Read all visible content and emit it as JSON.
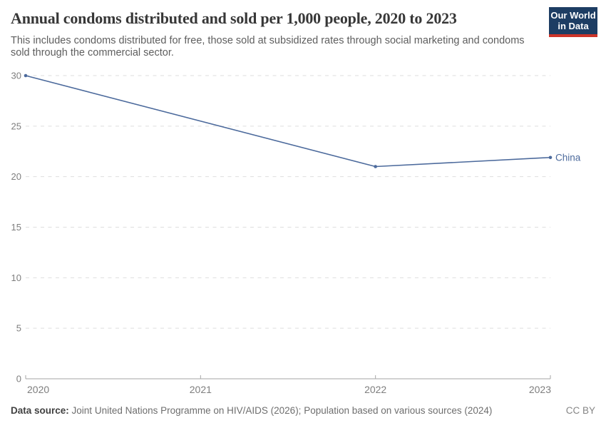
{
  "header": {
    "title": "Annual condoms distributed and sold per 1,000 people, 2020 to 2023",
    "subtitle": "This includes condoms distributed for free, those sold at subsidized rates through social marketing and condoms sold through the commercial sector."
  },
  "logo": {
    "line1": "Our World",
    "line2": "in Data"
  },
  "chart_data": {
    "type": "line",
    "title": "Annual condoms distributed and sold per 1,000 people, 2020 to 2023",
    "xlabel": "",
    "ylabel": "",
    "xlim": [
      2020,
      2023
    ],
    "ylim": [
      0,
      30
    ],
    "x_ticks": [
      2020,
      2021,
      2022,
      2023
    ],
    "y_ticks": [
      0,
      5,
      10,
      15,
      20,
      25,
      30
    ],
    "grid": "horizontal-dashed",
    "legend_position": "end-of-line-label",
    "series": [
      {
        "name": "China",
        "color": "#4C6A9C",
        "x": [
          2020,
          2022,
          2023
        ],
        "values": [
          30,
          21,
          21.9
        ]
      }
    ]
  },
  "footer": {
    "data_source_label": "Data source:",
    "data_source_text": "Joint United Nations Programme on HIV/AIDS (2026); Population based on various sources (2024)",
    "license": "CC BY"
  },
  "colors": {
    "line": "#4C6A9C",
    "grid": "#dedede",
    "axis": "#a6a6a6",
    "tick_label": "#7e7e7e",
    "navy": "#1d3d63",
    "red": "#cc3429"
  }
}
